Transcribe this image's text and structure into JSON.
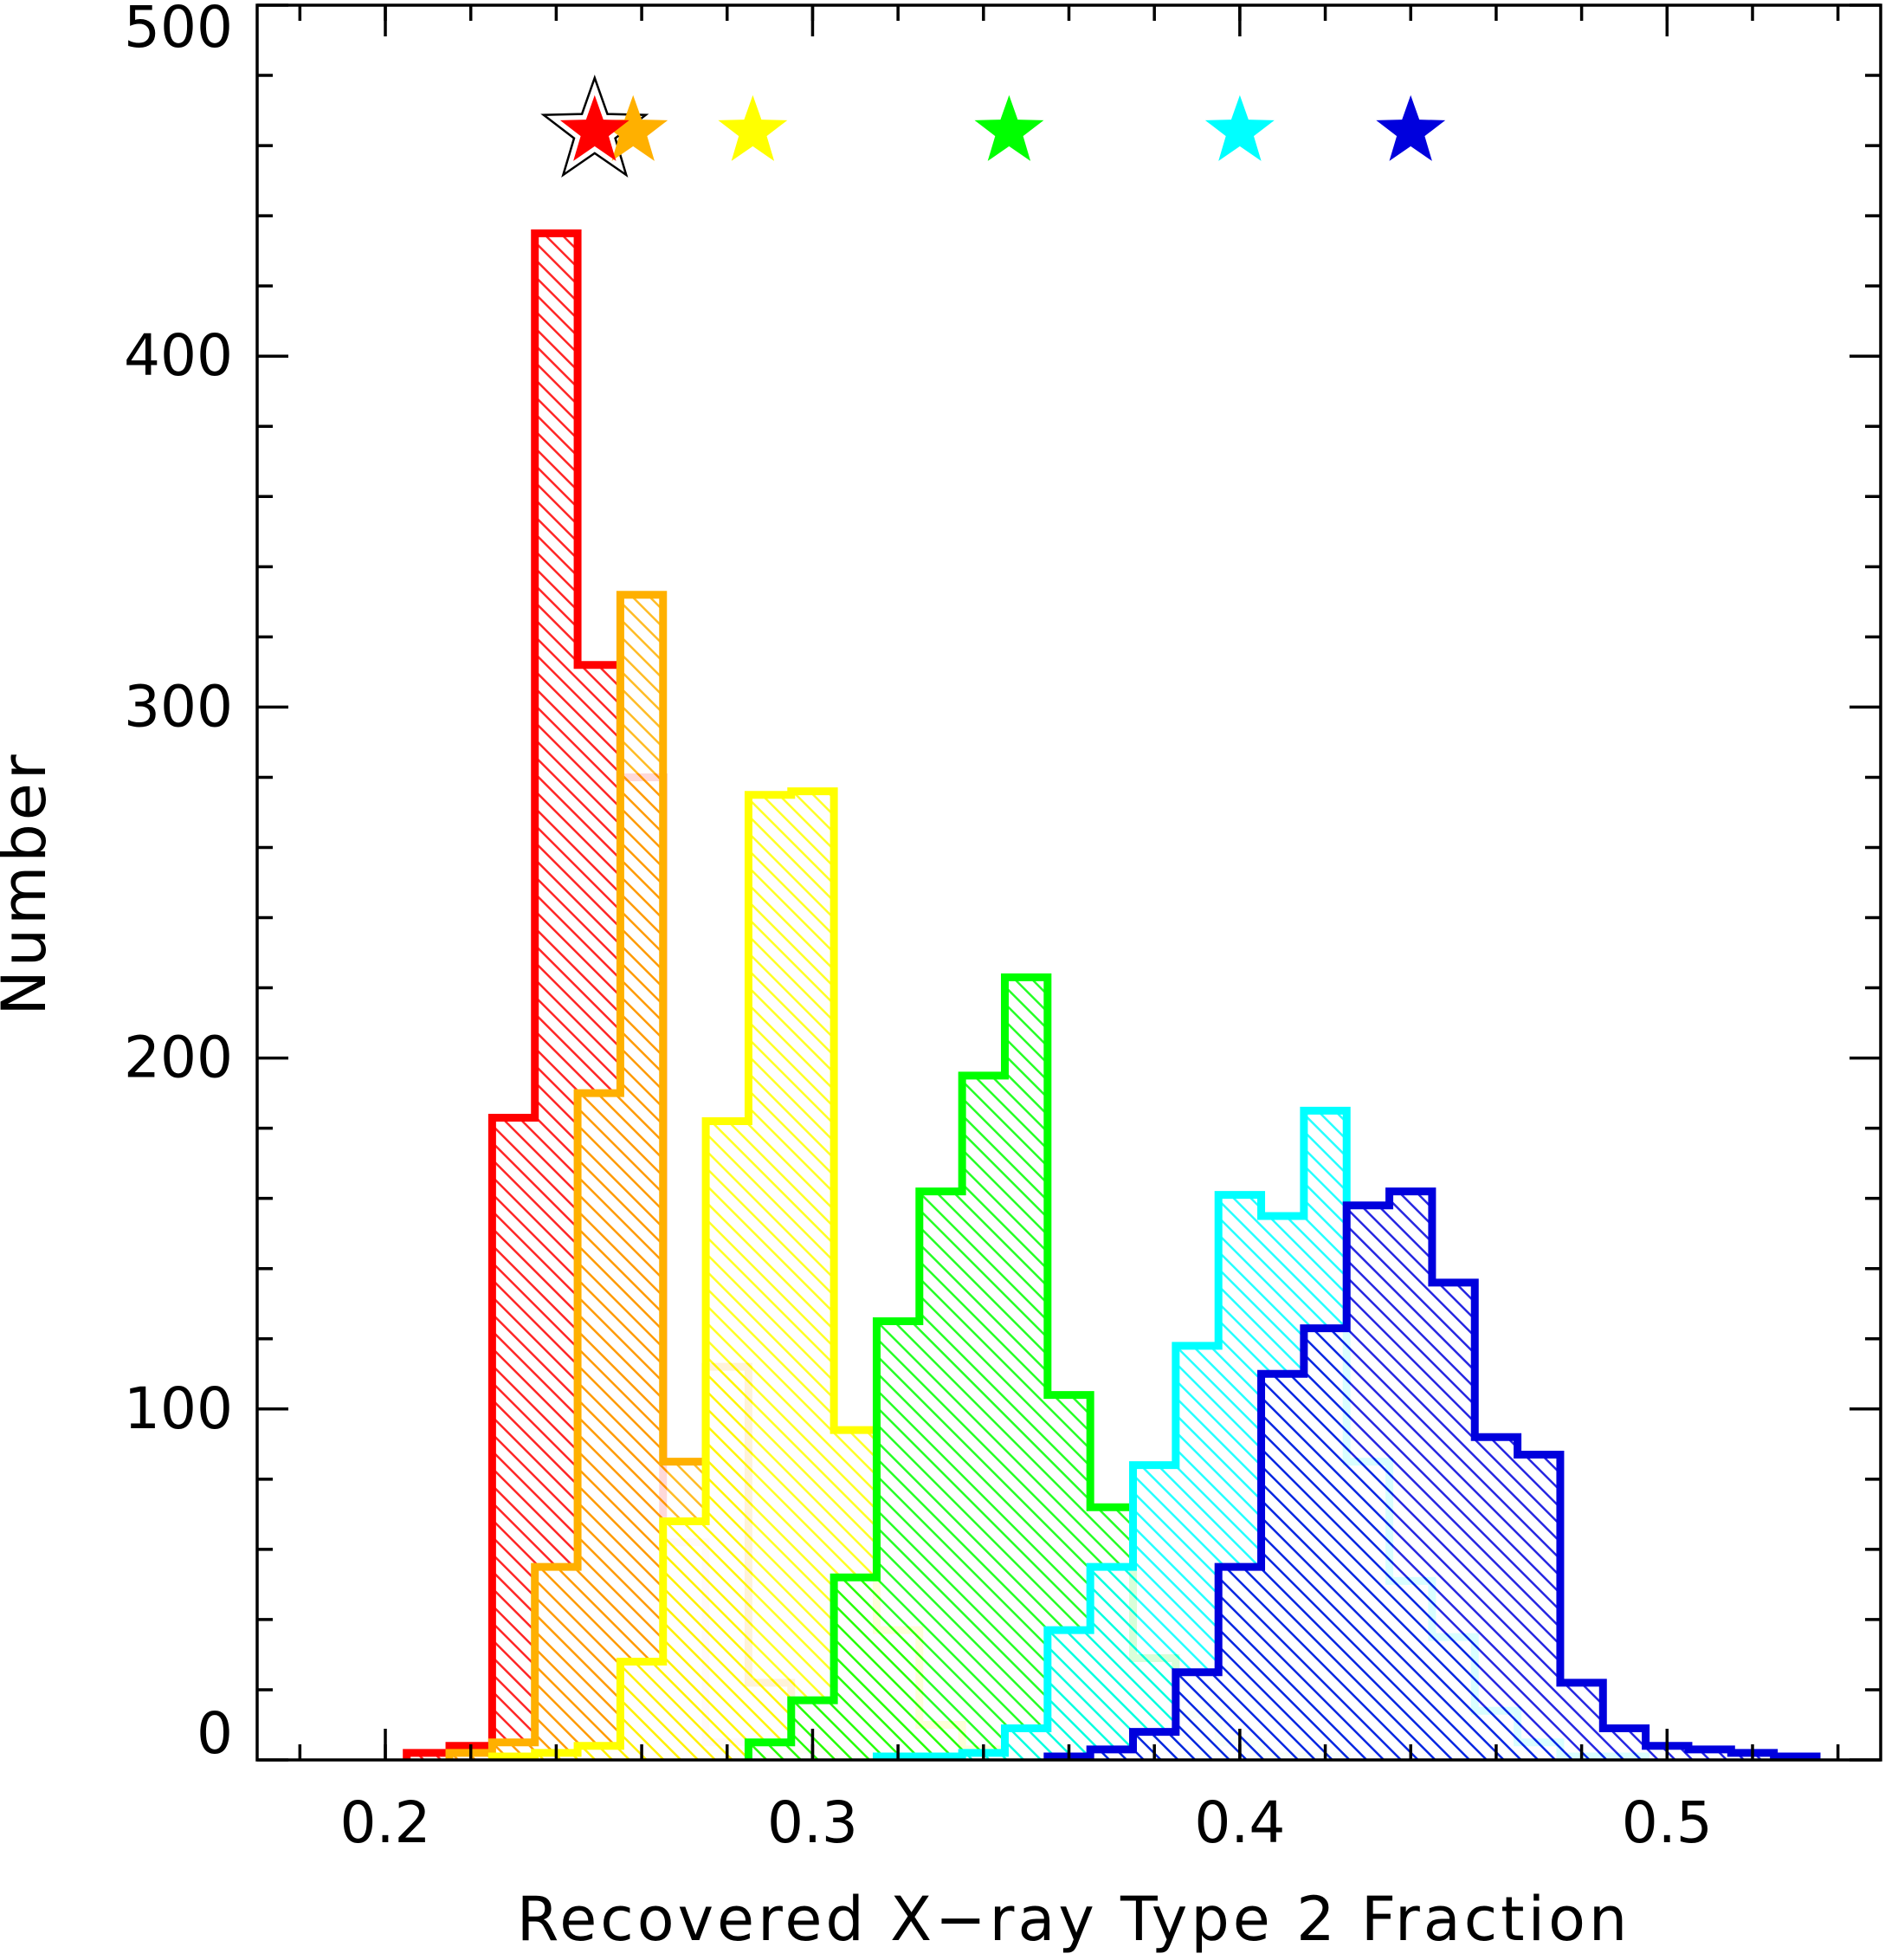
{
  "chart_data": {
    "type": "histogram",
    "xlabel": "Recovered X−ray Type 2 Fraction",
    "ylabel": "Number",
    "xlim": [
      0.17,
      0.55
    ],
    "ylim": [
      0,
      500
    ],
    "x_ticks": [
      0.2,
      0.3,
      0.4,
      0.5
    ],
    "x_tick_labels": [
      "0.2",
      "0.3",
      "0.4",
      "0.5"
    ],
    "y_ticks": [
      0,
      100,
      200,
      300,
      400,
      500
    ],
    "y_tick_labels": [
      "0",
      "100",
      "200",
      "300",
      "400",
      "500"
    ],
    "grid": false,
    "fill": "hatched",
    "bin_width": 0.01,
    "series": [
      {
        "color": "#ff0000",
        "star_x": 0.249,
        "bin_edges": [
          0.205,
          0.215,
          0.225,
          0.235,
          0.245,
          0.255,
          0.265,
          0.275,
          0.285,
          0.295
        ],
        "counts": [
          2,
          4,
          183,
          435,
          312,
          280,
          62,
          5,
          1
        ]
      },
      {
        "color": "#ffb000",
        "star_x": 0.258,
        "bin_edges": [
          0.215,
          0.225,
          0.235,
          0.245,
          0.255,
          0.265,
          0.275,
          0.285,
          0.295,
          0.305
        ],
        "counts": [
          2,
          5,
          55,
          190,
          332,
          85,
          112,
          22,
          3
        ]
      },
      {
        "color": "#ffff00",
        "star_x": 0.286,
        "bin_edges": [
          0.225,
          0.235,
          0.245,
          0.255,
          0.265,
          0.275,
          0.285,
          0.295,
          0.305,
          0.315,
          0.325,
          0.335,
          0.345
        ],
        "counts": [
          1,
          2,
          4,
          28,
          68,
          182,
          275,
          276,
          94,
          37,
          10,
          3
        ]
      },
      {
        "color": "#00ff00",
        "star_x": 0.346,
        "bin_edges": [
          0.285,
          0.295,
          0.305,
          0.315,
          0.325,
          0.335,
          0.345,
          0.355,
          0.365,
          0.375,
          0.385,
          0.395,
          0.405,
          0.415,
          0.425
        ],
        "counts": [
          5,
          17,
          52,
          125,
          162,
          195,
          223,
          104,
          72,
          29,
          13,
          5,
          1,
          1
        ]
      },
      {
        "color": "#00ffff",
        "star_x": 0.4,
        "bin_edges": [
          0.315,
          0.325,
          0.335,
          0.345,
          0.355,
          0.365,
          0.375,
          0.385,
          0.395,
          0.405,
          0.415,
          0.425,
          0.435,
          0.445,
          0.455,
          0.465,
          0.475,
          0.485,
          0.495
        ],
        "counts": [
          1,
          1,
          2,
          9,
          37,
          55,
          84,
          118,
          161,
          155,
          185,
          85,
          51,
          35,
          14,
          5,
          1,
          1
        ]
      },
      {
        "color": "#0000dd",
        "star_x": 0.44,
        "bin_edges": [
          0.355,
          0.365,
          0.375,
          0.385,
          0.395,
          0.405,
          0.415,
          0.425,
          0.435,
          0.445,
          0.455,
          0.465,
          0.475,
          0.485,
          0.495,
          0.505,
          0.515,
          0.525,
          0.535
        ],
        "counts": [
          1,
          3,
          8,
          25,
          55,
          110,
          123,
          158,
          162,
          136,
          92,
          87,
          22,
          9,
          4,
          3,
          2,
          1
        ]
      }
    ],
    "markers": {
      "y": 464,
      "shape": "star",
      "outlined_star": {
        "x": 0.249,
        "color": "#ffffff",
        "stroke": "#000000"
      }
    }
  }
}
